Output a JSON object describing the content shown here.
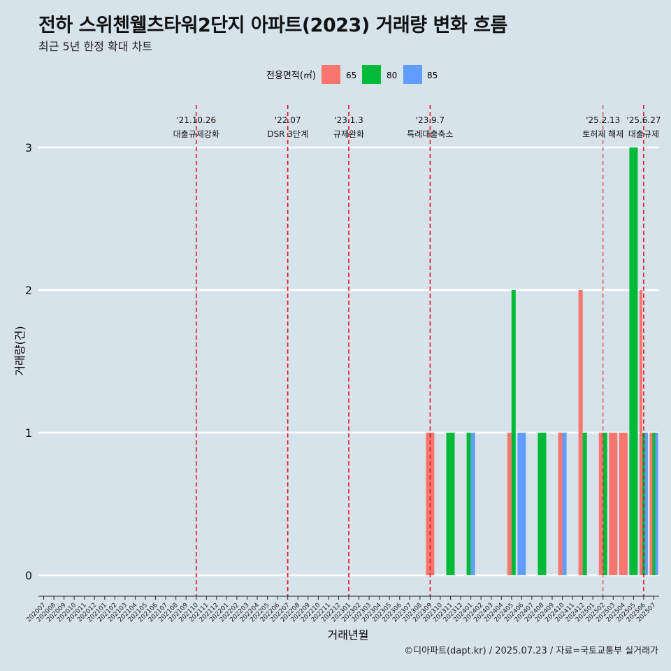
{
  "title": "전하 스위첸웰츠타워2단지 아파트(2023) 거래량 변화 흐름",
  "subtitle": "최근 5년 한정 확대 차트",
  "caption": "©디아파트(dapt.kr) / 2025.07.23 / 자료=국토교통부 실거래가",
  "colors": {
    "65": "#f8766d",
    "80": "#00ba38",
    "85": "#619cff",
    "event_line": "#e8141b",
    "background": "#d7e3ea"
  },
  "chart_data": {
    "type": "bar",
    "xlabel": "거래년월",
    "ylabel": "거래량(건)",
    "ylim": [
      0,
      3
    ],
    "yticks": [
      0,
      1,
      2,
      3
    ],
    "grid": true,
    "legend": {
      "title": "전용면적(㎡)",
      "placement": "top",
      "entries": [
        "65",
        "80",
        "85"
      ]
    },
    "categories": [
      "202007",
      "202008",
      "202009",
      "202010",
      "202011",
      "202012",
      "202101",
      "202102",
      "202103",
      "202104",
      "202105",
      "202106",
      "202107",
      "202108",
      "202109",
      "202110",
      "202111",
      "202112",
      "202201",
      "202202",
      "202203",
      "202204",
      "202205",
      "202206",
      "202207",
      "202208",
      "202209",
      "202210",
      "202211",
      "202212",
      "202301",
      "202302",
      "202303",
      "202304",
      "202305",
      "202306",
      "202307",
      "202308",
      "202309",
      "202310",
      "202311",
      "202312",
      "202401",
      "202402",
      "202403",
      "202404",
      "202405",
      "202406",
      "202407",
      "202408",
      "202409",
      "202410",
      "202411",
      "202412",
      "202501",
      "202502",
      "202503",
      "202504",
      "202505",
      "202506",
      "202507"
    ],
    "series": [
      {
        "name": "65",
        "data": [
          {
            "x": "202309",
            "y": 1
          },
          {
            "x": "202405",
            "y": 1
          },
          {
            "x": "202410",
            "y": 1
          },
          {
            "x": "202412",
            "y": 2
          },
          {
            "x": "202502",
            "y": 1
          },
          {
            "x": "202503",
            "y": 1
          },
          {
            "x": "202504",
            "y": 1
          },
          {
            "x": "202506",
            "y": 2
          },
          {
            "x": "202507",
            "y": 1
          }
        ]
      },
      {
        "name": "80",
        "data": [
          {
            "x": "202311",
            "y": 1
          },
          {
            "x": "202401",
            "y": 1
          },
          {
            "x": "202405",
            "y": 2
          },
          {
            "x": "202408",
            "y": 1
          },
          {
            "x": "202412",
            "y": 1
          },
          {
            "x": "202502",
            "y": 1
          },
          {
            "x": "202505",
            "y": 3
          },
          {
            "x": "202506",
            "y": 1
          },
          {
            "x": "202507",
            "y": 1
          }
        ]
      },
      {
        "name": "85",
        "data": [
          {
            "x": "202401",
            "y": 1
          },
          {
            "x": "202406",
            "y": 1
          },
          {
            "x": "202410",
            "y": 1
          },
          {
            "x": "202506",
            "y": 1
          },
          {
            "x": "202507",
            "y": 1
          }
        ]
      }
    ],
    "annotations": [
      {
        "x": "202110",
        "date": "'21.10.26",
        "label": "대출규제강화"
      },
      {
        "x": "202207",
        "date": "'22.07",
        "label": "DSR 3단계"
      },
      {
        "x": "202301",
        "date": "'23.1.3",
        "label": "규제완화"
      },
      {
        "x": "202309",
        "date": "'23.9.7",
        "label": "특례대출축소"
      },
      {
        "x": "202502",
        "date": "'25.2.13",
        "label": "토허제 해제"
      },
      {
        "x": "202506",
        "date": "'25.6.27",
        "label": "대출규제"
      }
    ]
  }
}
